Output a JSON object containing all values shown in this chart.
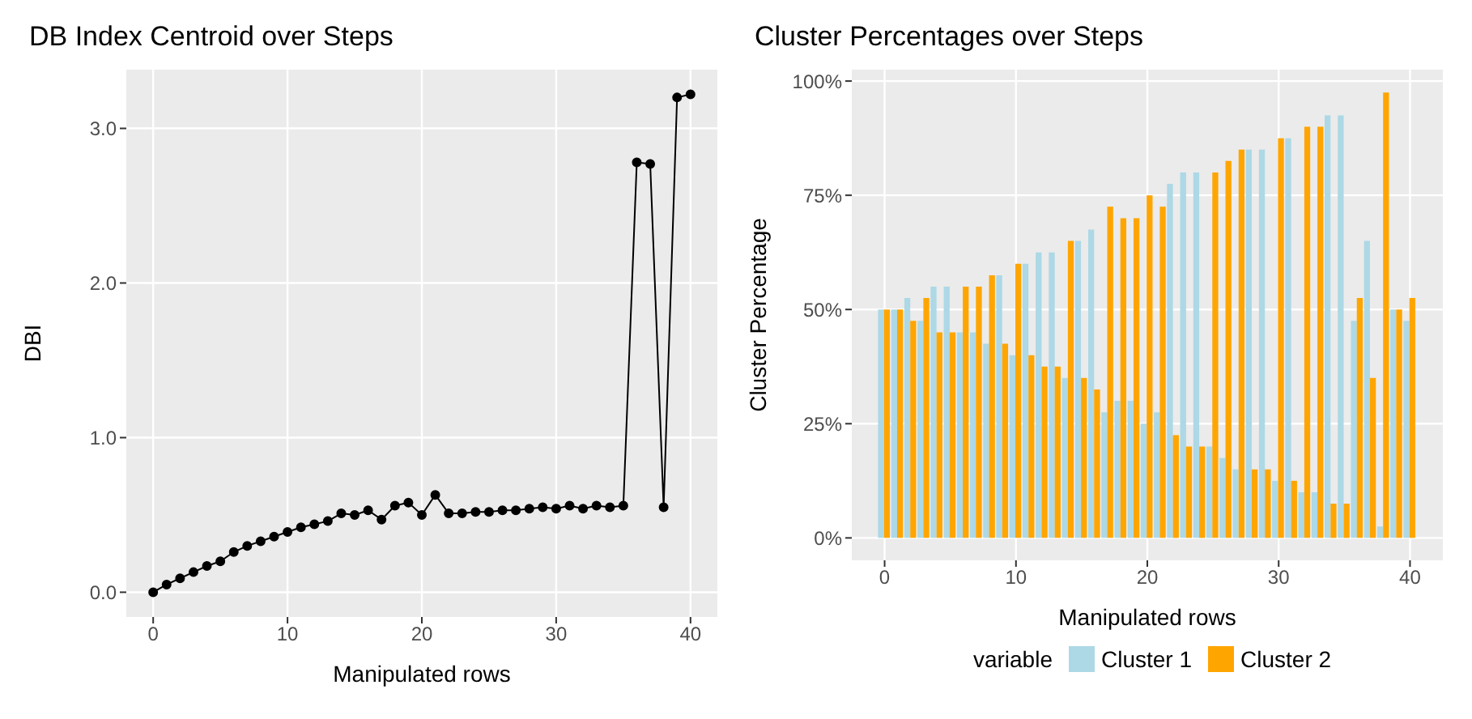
{
  "chart_data": [
    {
      "type": "line",
      "title": "DB Index Centroid over Steps",
      "xlabel": "Manipulated rows",
      "ylabel": "DBI",
      "grid": true,
      "marker": "circle",
      "legend": false,
      "x": [
        0,
        1,
        2,
        3,
        4,
        5,
        6,
        7,
        8,
        9,
        10,
        11,
        12,
        13,
        14,
        15,
        16,
        17,
        18,
        19,
        20,
        21,
        22,
        23,
        24,
        25,
        26,
        27,
        28,
        29,
        30,
        31,
        32,
        33,
        34,
        35,
        36,
        37,
        38,
        39,
        40
      ],
      "series": [
        {
          "color": "#000000",
          "values": [
            0,
            0.05,
            0.09,
            0.13,
            0.17,
            0.2,
            0.26,
            0.3,
            0.33,
            0.36,
            0.39,
            0.42,
            0.44,
            0.46,
            0.51,
            0.5,
            0.53,
            0.47,
            0.56,
            0.58,
            0.5,
            0.63,
            0.51,
            0.51,
            0.52,
            0.52,
            0.53,
            0.53,
            0.54,
            0.55,
            0.54,
            0.56,
            0.54,
            0.56,
            0.55,
            0.56,
            2.78,
            2.77,
            0.55,
            3.2,
            3.22
          ]
        }
      ],
      "xlim": [
        -2,
        42
      ],
      "xticks": [
        0,
        10,
        20,
        30,
        40
      ],
      "ylim": [
        -0.16,
        3.38
      ],
      "yticks": [
        {
          "value": 0,
          "label": "0.0"
        },
        {
          "value": 1,
          "label": "1.0"
        },
        {
          "value": 2,
          "label": "2.0"
        },
        {
          "value": 3,
          "label": "3.0"
        }
      ]
    },
    {
      "type": "bar",
      "title": "Cluster Percentages over Steps",
      "xlabel": "Manipulated rows",
      "ylabel": "Cluster Percentage",
      "grid": true,
      "legend": "bottom",
      "legend_title": "variable",
      "x": [
        0,
        1,
        2,
        3,
        4,
        5,
        6,
        7,
        8,
        9,
        10,
        11,
        12,
        13,
        14,
        15,
        16,
        17,
        18,
        19,
        20,
        21,
        22,
        23,
        24,
        25,
        26,
        27,
        28,
        29,
        30,
        31,
        32,
        33,
        34,
        35,
        36,
        37,
        38,
        39,
        40
      ],
      "series": [
        {
          "name": "Cluster 1",
          "color": "#add8e6",
          "values": [
            50,
            50,
            52.5,
            47.5,
            55,
            55,
            45,
            45,
            42.5,
            57.5,
            40,
            60,
            62.5,
            62.5,
            35,
            65,
            67.5,
            27.5,
            30,
            30,
            25,
            27.5,
            77.5,
            80,
            80,
            20,
            17.5,
            15,
            85,
            85,
            12.5,
            87.5,
            10,
            10,
            92.5,
            92.5,
            47.5,
            65,
            2.5,
            50,
            47.5
          ]
        },
        {
          "name": "Cluster 2",
          "color": "#ffa500",
          "values": [
            50,
            50,
            47.5,
            52.5,
            45,
            45,
            55,
            55,
            57.5,
            42.5,
            60,
            40,
            37.5,
            37.5,
            65,
            35,
            32.5,
            72.5,
            70,
            70,
            75,
            72.5,
            22.5,
            20,
            20,
            80,
            82.5,
            85,
            15,
            15,
            87.5,
            12.5,
            90,
            90,
            7.5,
            7.5,
            52.5,
            35,
            97.5,
            50,
            52.5
          ]
        }
      ],
      "xlim": [
        -2.5,
        42.5
      ],
      "xticks": [
        0,
        10,
        20,
        30,
        40
      ],
      "ylim": [
        -4.9,
        102.5
      ],
      "yticks": [
        {
          "value": 0,
          "label": "0%"
        },
        {
          "value": 25,
          "label": "25%"
        },
        {
          "value": 50,
          "label": "50%"
        },
        {
          "value": 75,
          "label": "75%"
        },
        {
          "value": 100,
          "label": "100%"
        }
      ]
    }
  ]
}
